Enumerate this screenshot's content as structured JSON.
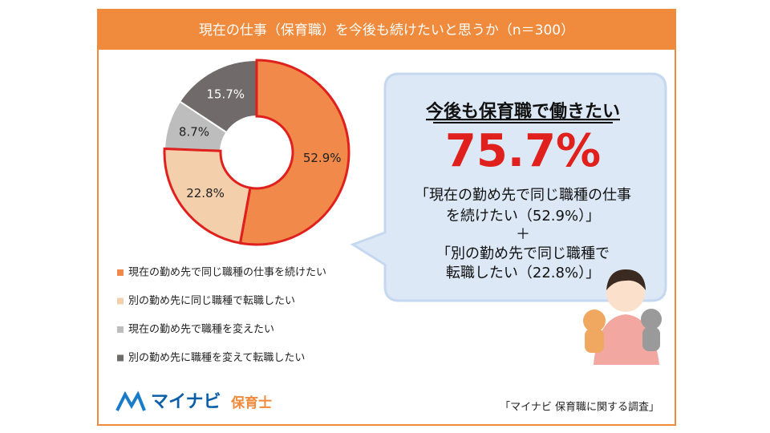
{
  "chart_data": {
    "type": "donut",
    "title": "現在の仕事（保育職）を今後も続けたいと思うか（n＝300）",
    "categories": [
      "現在の勤め先で同じ職種の仕事を続けたい",
      "別の勤め先に同じ職種で転職したい",
      "現在の勤め先で職種を変えたい",
      "別の勤め先に職種を変えて転職したい"
    ],
    "values": [
      52.9,
      22.8,
      8.7,
      15.7
    ],
    "value_labels": [
      "52.9%",
      "22.8%",
      "8.7%",
      "15.7%"
    ],
    "colors": [
      "#f0894a",
      "#f3cfab",
      "#bdbdbd",
      "#706a6a"
    ],
    "annotations": {
      "heading": "今後も保育職で働きたい",
      "total": "75.7%",
      "line1": "「現在の勤め先で同じ職種の仕事",
      "line2": "を続けたい（52.9%）」",
      "plus": "＋",
      "line3": "「別の勤め先で同じ職種で",
      "line4": "転職したい（22.8%）」"
    },
    "logo": "マイナビ",
    "logo_sub": "保育士",
    "source": "「マイナビ 保育職に関する調査」"
  }
}
